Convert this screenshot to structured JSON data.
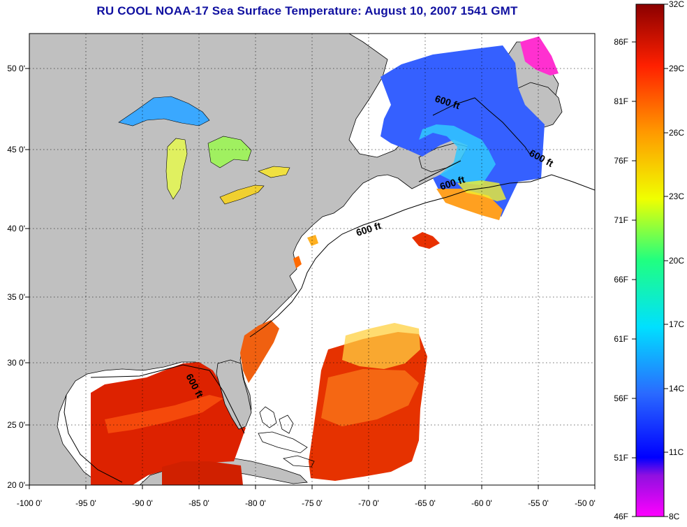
{
  "title": "RU COOL  NOAA-17  Sea Surface Temperature:  August 10, 2007 1541 GMT",
  "x_ticks": [
    "-100 0'",
    "-95 0'",
    "-90 0'",
    "-85 0'",
    "-80 0'",
    "-75 0'",
    "-70 0'",
    "-65 0'",
    "-60 0'",
    "-55 0'",
    "-50 0'"
  ],
  "y_ticks": [
    "50 0'",
    "45 0'",
    "40 0'",
    "35 0'",
    "30 0'",
    "25 0'",
    "20 0'"
  ],
  "isobath_labels": [
    "600 ft",
    "600 ft",
    "600 ft",
    "600 ft",
    "600 ft"
  ],
  "colorbar": {
    "fahrenheit": [
      "86F",
      "81F",
      "76F",
      "71F",
      "66F",
      "61F",
      "56F",
      "51F",
      "46F"
    ],
    "celsius": [
      "32C",
      "29C",
      "26C",
      "23C",
      "20C",
      "17C",
      "14C",
      "11C",
      "8C"
    ]
  },
  "colors": {
    "land": "#c0c0c0",
    "ocean_no_data": "#ffffff",
    "title": "#1010a0",
    "warm": "#dd2200",
    "cold": "#1a40ff"
  }
}
